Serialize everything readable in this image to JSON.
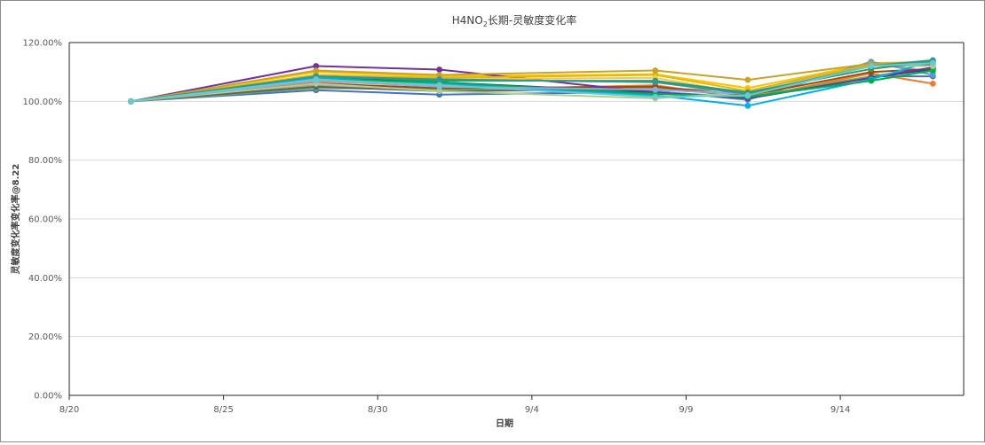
{
  "chart_data": {
    "type": "line",
    "title": {
      "main": "H4NO",
      "sub": "2",
      "rest": "长期-灵敏度变化率"
    },
    "xlabel": "日期",
    "ylabel": "灵敏度变化率变化率@8.22",
    "x_ticks": [
      "8/20",
      "8/25",
      "8/30",
      "9/4",
      "9/9",
      "9/14"
    ],
    "x_dates": [
      "8/22",
      "8/28",
      "9/1",
      "9/8",
      "9/11",
      "9/15",
      "9/17"
    ],
    "y_ticks": [
      "0.00%",
      "20.00%",
      "40.00%",
      "60.00%",
      "80.00%",
      "100.00%",
      "120.00%"
    ],
    "ylim": [
      0,
      120
    ],
    "grid": true,
    "legend": "none",
    "series": [
      {
        "color": "#4472c4",
        "values": [
          100,
          103.8,
          102.3,
          103.2,
          101.3,
          108.5,
          108.5
        ]
      },
      {
        "color": "#ed7d31",
        "values": [
          100,
          106.5,
          103.8,
          105.5,
          101.0,
          109.5,
          106.0
        ]
      },
      {
        "color": "#a5a5a5",
        "values": [
          100,
          105.5,
          104.0,
          104.5,
          103.5,
          113.0,
          110.0
        ]
      },
      {
        "color": "#ffc000",
        "values": [
          100,
          110.0,
          108.5,
          109.2,
          104.5,
          113.0,
          113.5
        ]
      },
      {
        "color": "#5b9bd5",
        "values": [
          100,
          107.5,
          105.0,
          103.5,
          100.5,
          113.5,
          109.0
        ]
      },
      {
        "color": "#70ad47",
        "values": [
          100,
          104.5,
          104.2,
          104.8,
          101.5,
          108.5,
          111.5
        ]
      },
      {
        "color": "#264478",
        "values": [
          100,
          108.0,
          106.5,
          103.0,
          101.0,
          108.0,
          111.0
        ]
      },
      {
        "color": "#9e480e",
        "values": [
          100,
          106.0,
          104.5,
          105.0,
          102.0,
          110.0,
          111.0
        ]
      },
      {
        "color": "#636363",
        "values": [
          100,
          105.0,
          103.5,
          104.0,
          102.5,
          112.0,
          112.5
        ]
      },
      {
        "color": "#7030a0",
        "values": [
          100,
          112.0,
          110.8,
          103.0,
          101.0,
          108.0,
          111.5
        ]
      },
      {
        "color": "#e6b800",
        "values": [
          100,
          109.0,
          108.0,
          109.0,
          103.5,
          112.5,
          113.0
        ]
      },
      {
        "color": "#f2c94c",
        "values": [
          100,
          108.5,
          107.5,
          108.0,
          102.5,
          112.0,
          112.0
        ]
      },
      {
        "color": "#00b0f0",
        "values": [
          100,
          108.0,
          106.0,
          102.0,
          98.5,
          107.5,
          113.8
        ]
      },
      {
        "color": "#00b050",
        "values": [
          100,
          107.5,
          106.5,
          102.5,
          101.5,
          107.0,
          110.5
        ]
      },
      {
        "color": "#a9d18e",
        "values": [
          100,
          106.0,
          103.5,
          101.0,
          103.0,
          112.0,
          112.0
        ]
      },
      {
        "color": "#c9a227",
        "values": [
          100,
          110.5,
          109.0,
          110.5,
          107.3,
          112.8,
          113.2
        ]
      },
      {
        "color": "#8faadc",
        "values": [
          100,
          107.0,
          105.0,
          104.0,
          102.5,
          112.0,
          113.0
        ]
      },
      {
        "color": "#339966",
        "values": [
          100,
          108.5,
          107.0,
          107.0,
          103.0,
          111.0,
          113.5
        ]
      },
      {
        "color": "#2e9999",
        "values": [
          100,
          108.5,
          107.5,
          106.5,
          102.5,
          112.0,
          114.0
        ]
      },
      {
        "color": "#6fc8c8",
        "values": [
          100,
          107.5,
          105.5,
          101.5,
          102.0,
          112.0,
          113.0
        ]
      }
    ]
  }
}
